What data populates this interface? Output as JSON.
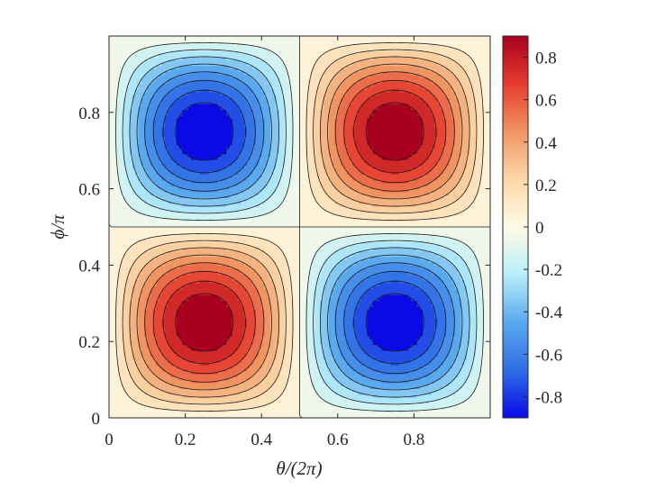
{
  "chart_data": {
    "type": "heatmap",
    "title": "",
    "xlabel": "θ/(2π)",
    "ylabel": "ϕ/π",
    "xlim": [
      0,
      1
    ],
    "ylim": [
      0,
      1
    ],
    "x_ticks": [
      0,
      0.2,
      0.4,
      0.6,
      0.8
    ],
    "x_tick_labels": [
      "0",
      "0.2",
      "0.4",
      "0.6",
      "0.8"
    ],
    "y_ticks": [
      0,
      0.2,
      0.4,
      0.6,
      0.8
    ],
    "y_tick_labels": [
      "0",
      "0.2",
      "0.4",
      "0.6",
      "0.8"
    ],
    "field": "sin(2πx)·sin(2πy) × 0.9 scaled",
    "field_amplitude": 0.9,
    "color_limits": [
      -0.9,
      0.9
    ],
    "contour_levels": [
      -0.8,
      -0.7,
      -0.6,
      -0.5,
      -0.4,
      -0.3,
      -0.2,
      -0.1,
      0,
      0.1,
      0.2,
      0.3,
      0.4,
      0.5,
      0.6,
      0.7,
      0.8
    ],
    "colorbar": {
      "ticks": [
        0.8,
        0.6,
        0.4,
        0.2,
        0,
        -0.2,
        -0.4,
        -0.6,
        -0.8
      ],
      "tick_labels": [
        "0.8",
        "0.6",
        "0.4",
        "0.2",
        "0",
        "-0.2",
        "-0.4",
        "-0.6",
        "-0.8"
      ],
      "colormap": [
        "#0a0ae6",
        "#2e6ee6",
        "#5aa8ee",
        "#b8eefa",
        "#fffbe6",
        "#fcd7a8",
        "#f09462",
        "#e63c2e",
        "#a8001e"
      ]
    },
    "grid": false,
    "legend": "none"
  }
}
